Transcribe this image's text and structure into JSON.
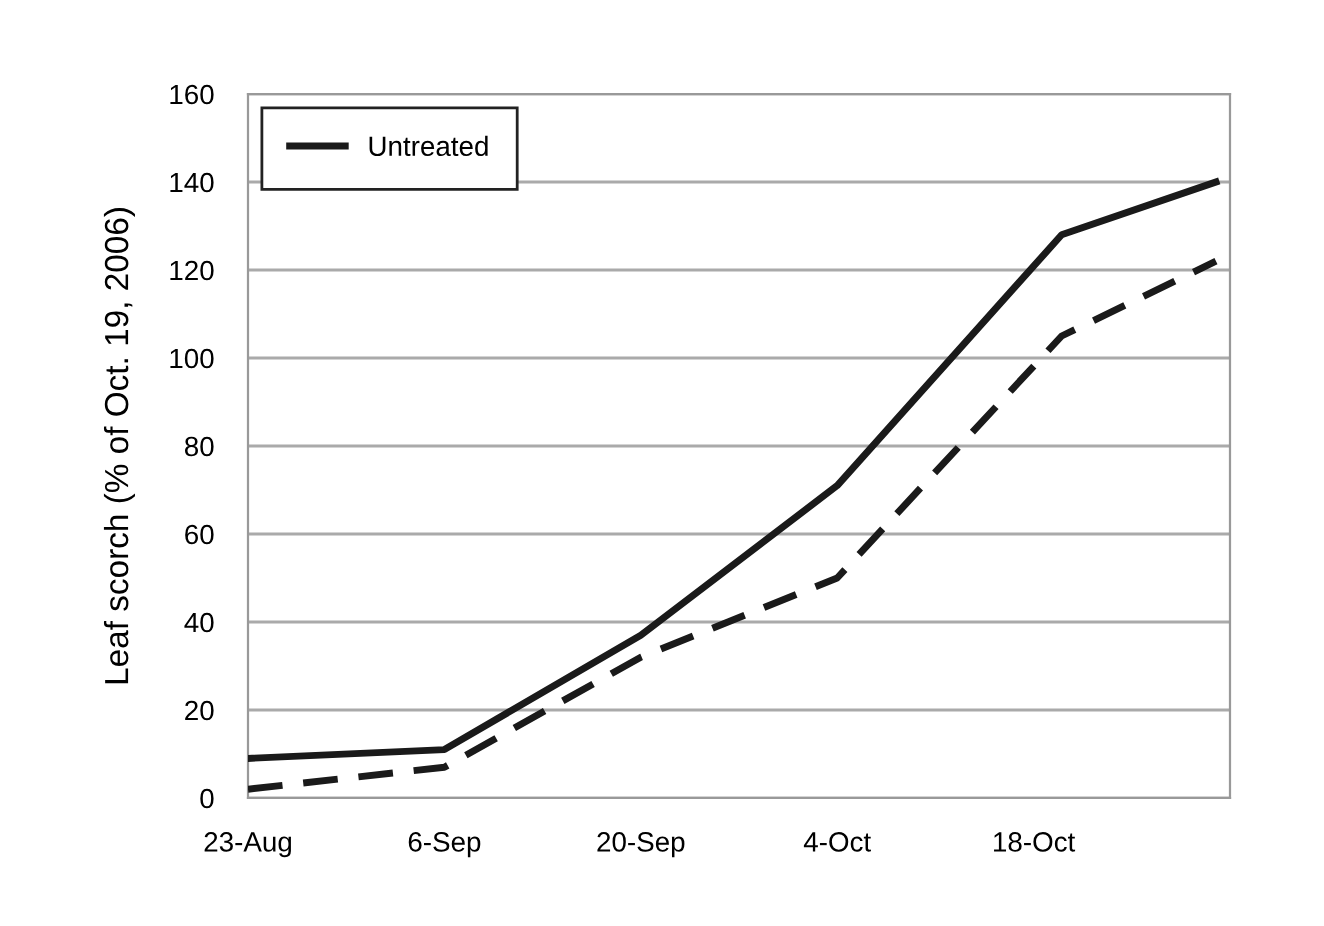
{
  "chart_data": {
    "type": "line",
    "ylabel": "Leaf scorch (% of Oct. 19, 2006)",
    "x": [
      "2006-08-23",
      "2006-09-06",
      "2006-09-20",
      "2006-10-04",
      "2006-10-20",
      "2006-10-31"
    ],
    "series": [
      {
        "color": "#1a1a1a",
        "line_style": "dashed",
        "values": [
          2,
          7,
          32,
          50,
          105,
          122
        ]
      },
      {
        "name": "Untreated",
        "color": "#1a1a1a",
        "line_style": "solid",
        "values": [
          9,
          11,
          37,
          71,
          128,
          140
        ]
      }
    ],
    "xlim": [
      "2006-08-23",
      "2006-11-01"
    ],
    "xticks": [
      {
        "value": "2006-08-23",
        "label": "23-Aug"
      },
      {
        "value": "2006-09-06",
        "label": "6-Sep"
      },
      {
        "value": "2006-09-20",
        "label": "20-Sep"
      },
      {
        "value": "2006-10-04",
        "label": "4-Oct"
      },
      {
        "value": "2006-10-18",
        "label": "18-Oct"
      }
    ],
    "ylim": [
      0,
      160
    ],
    "yticks": [
      0,
      20,
      40,
      60,
      80,
      100,
      120,
      140,
      160
    ],
    "grid": "y",
    "legend": "top left",
    "marker": "none"
  }
}
